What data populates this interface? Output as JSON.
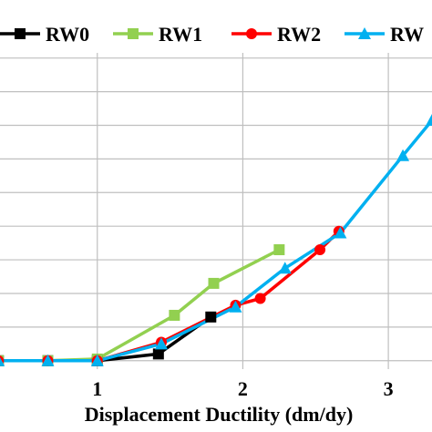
{
  "chart_data": {
    "type": "line",
    "xlabel": "Displacement Ductility (dm/dy)",
    "ylabel": "",
    "xlim": [
      0.3,
      3.3
    ],
    "ylim": [
      -0.25,
      9.1
    ],
    "x_ticks": [
      1,
      2,
      3
    ],
    "grid": true,
    "legend_position": "top",
    "series": [
      {
        "name": "RW0",
        "color": "#000000",
        "marker": "square",
        "x": [
          0.32,
          0.66,
          1.0,
          1.42,
          1.78
        ],
        "y": [
          0.0,
          0.0,
          0.0,
          0.2,
          1.3
        ]
      },
      {
        "name": "RW1",
        "color": "#92d050",
        "marker": "square",
        "x": [
          0.32,
          0.66,
          1.0,
          1.53,
          1.8,
          2.25
        ],
        "y": [
          0.0,
          0.0,
          0.05,
          1.35,
          2.3,
          3.3
        ]
      },
      {
        "name": "RW2",
        "color": "#ff0000",
        "marker": "circle",
        "x": [
          0.32,
          0.66,
          1.0,
          1.44,
          1.95,
          2.12,
          2.53,
          2.66
        ],
        "y": [
          0.0,
          0.0,
          0.0,
          0.55,
          1.65,
          1.85,
          3.3,
          3.85
        ]
      },
      {
        "name": "RW",
        "color": "#00b0f0",
        "marker": "triangle",
        "x": [
          0.32,
          0.66,
          1.0,
          1.44,
          1.95,
          2.29,
          2.67,
          3.1,
          3.3
        ],
        "y": [
          0.0,
          0.0,
          0.0,
          0.5,
          1.6,
          2.75,
          3.8,
          6.1,
          7.15
        ]
      }
    ]
  }
}
